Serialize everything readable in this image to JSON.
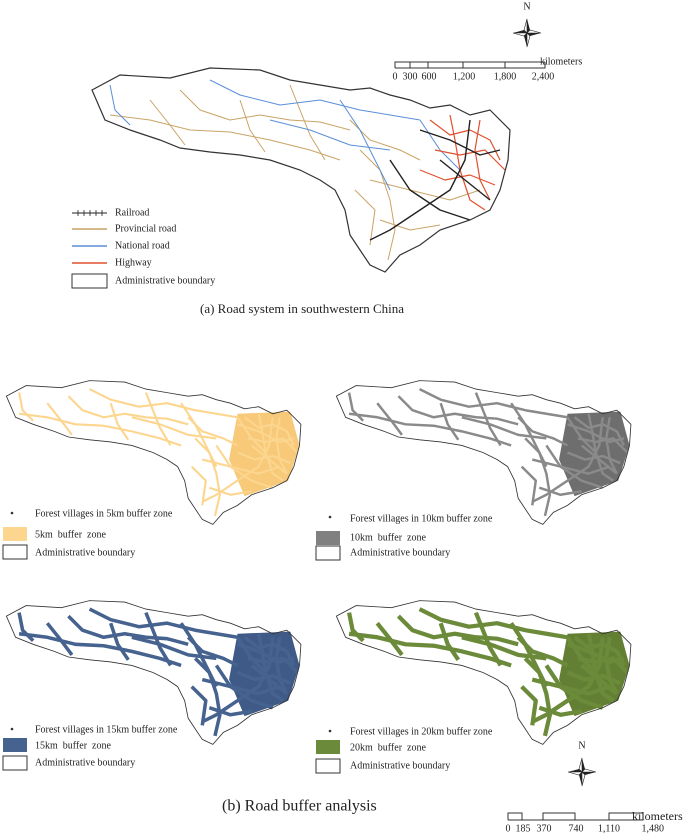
{
  "road_map": {
    "north": "N",
    "scale_unit": "kilometers",
    "scale_labels": [
      "0",
      "300",
      "600",
      "1,200",
      "1,800",
      "2,400"
    ],
    "legend": [
      "Railroad",
      "Provincial road",
      "National road",
      "Highway",
      "Administrative boundary"
    ],
    "caption": "(a) Road system in southwestern China"
  },
  "buffer_maps": {
    "panels": [
      {
        "villages": "Forest villages in 5km buffer zone",
        "buffer": "5km  buffer  zone",
        "boundary": "Administrative boundary"
      },
      {
        "villages": "Forest villages in 10km buffer zone",
        "buffer": "10km  buffer  zone",
        "boundary": "Administrative boundary"
      },
      {
        "villages": "Forest villages in 15km buffer zone",
        "buffer": "15km  buffer  zone",
        "boundary": "Administrative boundary"
      },
      {
        "villages": "Forest villages in 20km buffer zone",
        "buffer": "20km  buffer  zone",
        "boundary": "Administrative boundary"
      }
    ],
    "north": "N",
    "scale_unit": "kilometers",
    "scale_labels": [
      "0",
      "185",
      "370",
      "740",
      "1,110",
      "1,480"
    ],
    "caption": "(b) Road buffer analysis"
  }
}
